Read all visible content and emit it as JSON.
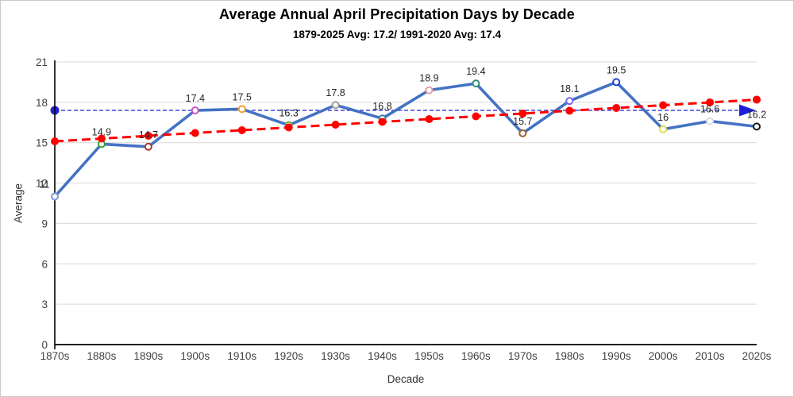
{
  "chart_data": {
    "type": "line",
    "title": "Average Annual April Precipitation Days by Decade",
    "subtitle": "1879-2025 Avg: 17.2/ 1991-2020 Avg: 17.4",
    "xlabel": "Decade",
    "ylabel": "Average",
    "ylim": [
      0,
      21
    ],
    "ytick_step": 3,
    "ytick_labels": [
      "0",
      "3",
      "6",
      "9",
      "12",
      "15",
      "18",
      "21"
    ],
    "categories": [
      "1870s",
      "1880s",
      "1890s",
      "1900s",
      "1910s",
      "1920s",
      "1930s",
      "1940s",
      "1950s",
      "1960s",
      "1970s",
      "1980s",
      "1990s",
      "2000s",
      "2010s",
      "2020s"
    ],
    "series": [
      {
        "name": "decade-average",
        "color": "#4472C4",
        "values": [
          11,
          14.9,
          14.7,
          17.4,
          17.5,
          16.3,
          17.8,
          16.8,
          18.9,
          19.4,
          15.7,
          18.1,
          19.5,
          16,
          16.6,
          16.2
        ],
        "labels": [
          "11",
          "14.9",
          "14.7",
          "17.4",
          "17.5",
          "16.3",
          "17.8",
          "16.8",
          "18.9",
          "19.4",
          "15.7",
          "18.1",
          "19.5",
          "16",
          "16.6",
          "16.2"
        ],
        "marker_colors": [
          "#7E9BD3",
          "#33A632",
          "#A23C33",
          "#C45AC0",
          "#E8A33D",
          "#7DA23E",
          "#9E9E9E",
          "#31859C",
          "#E89CA6",
          "#2E8B74",
          "#A0622D",
          "#7B68EE",
          "#2244CC",
          "#DFDD55",
          "#D9D9E8",
          "#1A1A1A"
        ]
      }
    ],
    "trendline": {
      "name": "linear-trend",
      "style": "dashed",
      "color": "#FF0000",
      "start": 15.1,
      "end": 18.2,
      "markers": true
    },
    "reference_line": {
      "name": "1991-2020-average",
      "value": 17.4,
      "style": "dashed",
      "color": "#1F1FD9",
      "start_dot": true,
      "end_arrow": true
    },
    "grid": {
      "horizontal": true,
      "color": "#D9D9D9"
    },
    "axis_color": "#000000",
    "tick_color": "#404040",
    "data_label_color": "#262626",
    "legend": "none"
  }
}
